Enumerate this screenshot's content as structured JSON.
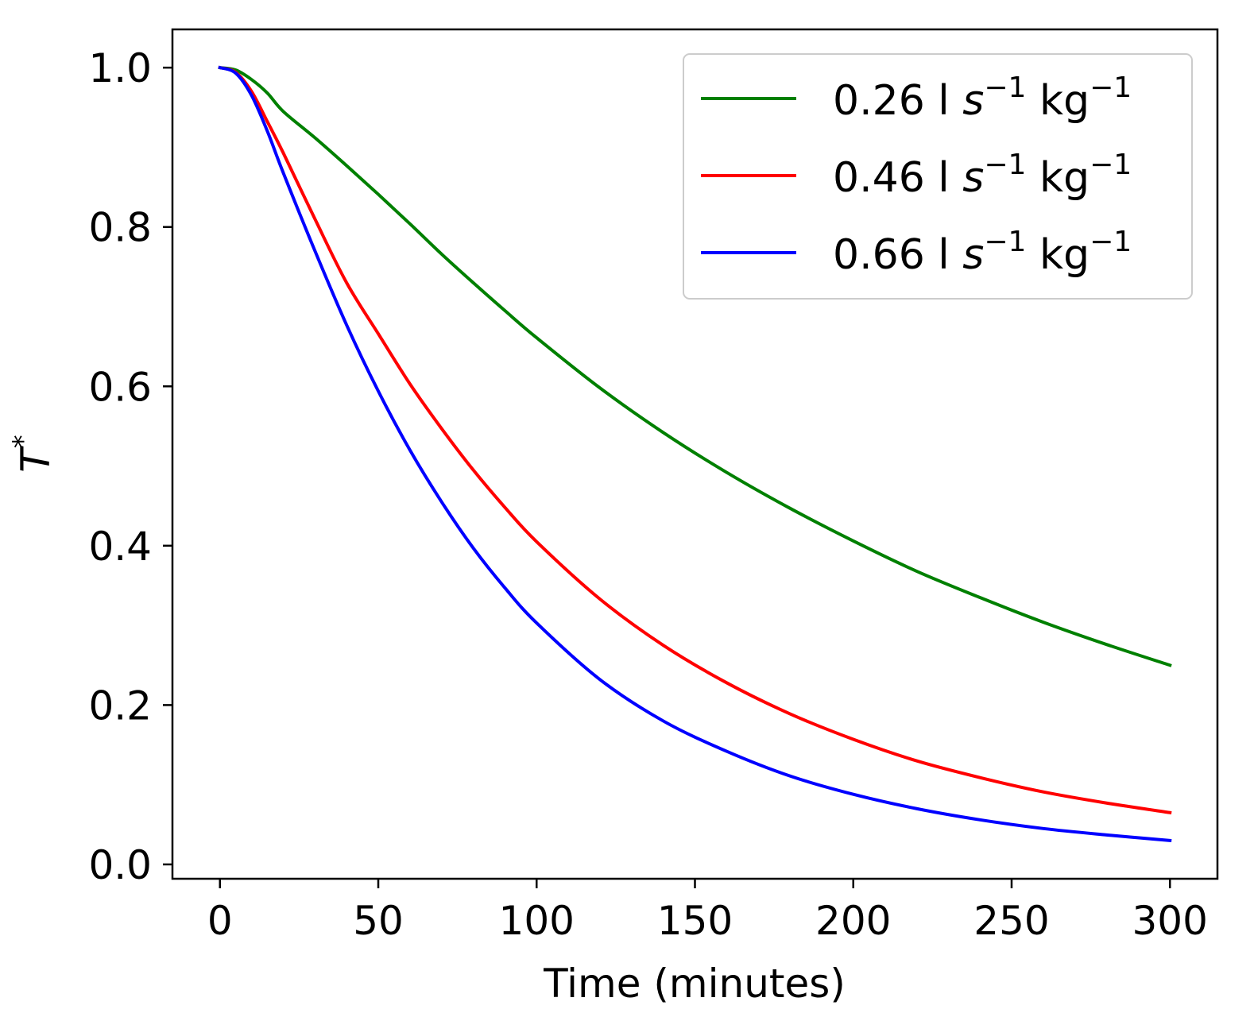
{
  "chart_data": {
    "type": "line",
    "title": "",
    "xlabel": "Time (minutes)",
    "ylabel": "T",
    "ylabel_superscript": "*",
    "xlim": [
      -15,
      315
    ],
    "ylim": [
      -0.018,
      1.048
    ],
    "xticks": [
      0,
      50,
      100,
      150,
      200,
      250,
      300
    ],
    "yticks": [
      0.0,
      0.2,
      0.4,
      0.6,
      0.8,
      1.0
    ],
    "xtick_labels": [
      "0",
      "50",
      "100",
      "150",
      "200",
      "250",
      "300"
    ],
    "ytick_labels": [
      "0.0",
      "0.2",
      "0.4",
      "0.6",
      "0.8",
      "1.0"
    ],
    "grid": false,
    "legend_position": "top-right",
    "x": [
      0,
      5,
      10,
      15,
      20,
      30,
      40,
      50,
      60,
      70,
      80,
      90,
      100,
      120,
      140,
      160,
      180,
      200,
      220,
      240,
      260,
      280,
      300
    ],
    "series": [
      {
        "name": "0.26 l s−1 kg−1",
        "label_value": "0.26 l ",
        "label_s": "s",
        "label_s_exp": "−1",
        "label_unit": " kg",
        "label_unit_exp": "−1",
        "color": "#008000",
        "values": [
          1.0,
          0.997,
          0.985,
          0.968,
          0.945,
          0.912,
          0.877,
          0.841,
          0.804,
          0.766,
          0.73,
          0.695,
          0.661,
          0.598,
          0.542,
          0.492,
          0.447,
          0.406,
          0.368,
          0.335,
          0.304,
          0.276,
          0.25
        ]
      },
      {
        "name": "0.46 l s−1 kg−1",
        "label_value": "0.46 l ",
        "label_s": "s",
        "label_s_exp": "−1",
        "label_unit": " kg",
        "label_unit_exp": "−1",
        "color": "#ff0000",
        "values": [
          1.0,
          0.994,
          0.97,
          0.932,
          0.893,
          0.81,
          0.73,
          0.666,
          0.603,
          0.547,
          0.495,
          0.448,
          0.405,
          0.333,
          0.275,
          0.228,
          0.189,
          0.157,
          0.13,
          0.109,
          0.091,
          0.077,
          0.065
        ]
      },
      {
        "name": "0.66 l s−1 kg−1",
        "label_value": "0.66 l ",
        "label_s": "s",
        "label_s_exp": "−1",
        "label_unit": " kg",
        "label_unit_exp": "−1",
        "color": "#0000ff",
        "values": [
          1.0,
          0.993,
          0.965,
          0.92,
          0.868,
          0.77,
          0.677,
          0.594,
          0.52,
          0.455,
          0.397,
          0.347,
          0.303,
          0.232,
          0.18,
          0.142,
          0.111,
          0.088,
          0.07,
          0.056,
          0.045,
          0.037,
          0.03
        ]
      }
    ]
  }
}
